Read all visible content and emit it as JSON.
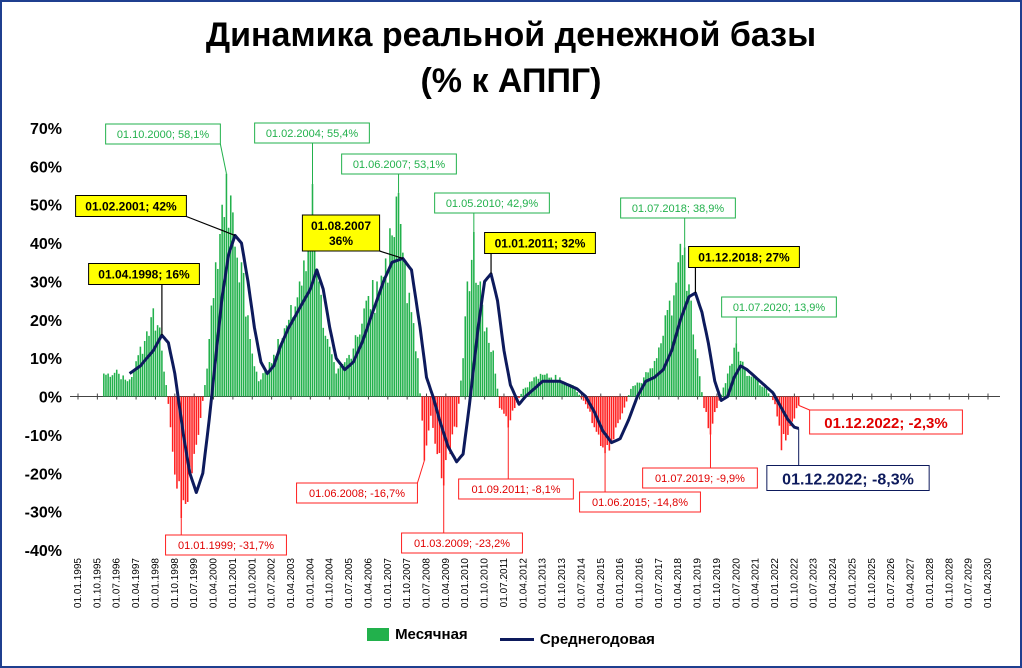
{
  "title_line1": "Динамика реальной денежной базы",
  "title_line2": "(% к АППГ)",
  "legend": {
    "monthly": "Месячная",
    "annual": "Среднегодовая"
  },
  "colors": {
    "positive": "#22b14c",
    "negative": "#ff2020",
    "annual_line": "#0d1a5c",
    "frame": "#1f3f8f"
  },
  "chart_data": {
    "type": "bar",
    "x_unit": "month",
    "x_range": [
      "1995-01",
      "2030-04"
    ],
    "ylim": [
      -40,
      70
    ],
    "yticks": [
      "70%",
      "60%",
      "50%",
      "40%",
      "30%",
      "20%",
      "10%",
      "0%",
      "-10%",
      "-20%",
      "-30%",
      "-40%"
    ],
    "xticks": [
      "01.01.1995",
      "01.10.1995",
      "01.07.1996",
      "01.04.1997",
      "01.01.1998",
      "01.10.1998",
      "01.07.1999",
      "01.04.2000",
      "01.01.2001",
      "01.10.2001",
      "01.07.2002",
      "01.04.2003",
      "01.01.2004",
      "01.10.2004",
      "01.07.2005",
      "01.04.2006",
      "01.01.2007",
      "01.10.2007",
      "01.07.2008",
      "01.04.2009",
      "01.01.2010",
      "01.10.2010",
      "01.07.2011",
      "01.04.2012",
      "01.01.2013",
      "01.10.2013",
      "01.07.2014",
      "01.04.2015",
      "01.01.2016",
      "01.10.2016",
      "01.07.2017",
      "01.04.2018",
      "01.01.2019",
      "01.10.2019",
      "01.07.2020",
      "01.04.2021",
      "01.01.2022",
      "01.10.2022",
      "01.07.2023",
      "01.04.2024",
      "01.01.2025",
      "01.10.2025",
      "01.07.2026",
      "01.04.2027",
      "01.01.2028",
      "01.10.2028",
      "01.07.2029",
      "01.04.2030"
    ],
    "monthly_points": [
      [
        "1996-01",
        6
      ],
      [
        "1996-07",
        7
      ],
      [
        "1996-12",
        4
      ],
      [
        "1997-03",
        7
      ],
      [
        "1997-06",
        13
      ],
      [
        "1997-09",
        17
      ],
      [
        "1997-12",
        23
      ],
      [
        "1998-03",
        18
      ],
      [
        "1998-06",
        3
      ],
      [
        "1998-08",
        -8
      ],
      [
        "1998-11",
        -24
      ],
      [
        "1999-01",
        -31.7
      ],
      [
        "1999-03",
        -28
      ],
      [
        "1999-06",
        -20
      ],
      [
        "1999-09",
        -10
      ],
      [
        "1999-12",
        3
      ],
      [
        "2000-02",
        15
      ],
      [
        "2000-05",
        35
      ],
      [
        "2000-08",
        50
      ],
      [
        "2000-10",
        58.1
      ],
      [
        "2001-01",
        48
      ],
      [
        "2001-05",
        35
      ],
      [
        "2001-09",
        15
      ],
      [
        "2002-01",
        4
      ],
      [
        "2002-06",
        9
      ],
      [
        "2002-10",
        15
      ],
      [
        "2003-03",
        20
      ],
      [
        "2003-08",
        30
      ],
      [
        "2003-12",
        38
      ],
      [
        "2004-02",
        55.4
      ],
      [
        "2004-05",
        30
      ],
      [
        "2004-09",
        15
      ],
      [
        "2005-01",
        6
      ],
      [
        "2005-06",
        10
      ],
      [
        "2005-10",
        16
      ],
      [
        "2006-03",
        25
      ],
      [
        "2006-08",
        30
      ],
      [
        "2006-12",
        36
      ],
      [
        "2007-03",
        42
      ],
      [
        "2007-06",
        53.1
      ],
      [
        "2007-09",
        35
      ],
      [
        "2007-12",
        22
      ],
      [
        "2008-03",
        10
      ],
      [
        "2008-06",
        -16.7
      ],
      [
        "2008-09",
        -5
      ],
      [
        "2008-12",
        -15
      ],
      [
        "2009-03",
        -23.2
      ],
      [
        "2009-06",
        -15
      ],
      [
        "2009-09",
        -8
      ],
      [
        "2009-12",
        10
      ],
      [
        "2010-02",
        30
      ],
      [
        "2010-05",
        42.9
      ],
      [
        "2010-08",
        30
      ],
      [
        "2010-11",
        18
      ],
      [
        "2011-02",
        12
      ],
      [
        "2011-05",
        -3
      ],
      [
        "2011-09",
        -8.1
      ],
      [
        "2011-12",
        -3
      ],
      [
        "2012-04",
        2
      ],
      [
        "2012-09",
        5
      ],
      [
        "2013-03",
        6
      ],
      [
        "2013-09",
        5
      ],
      [
        "2014-03",
        3
      ],
      [
        "2014-09",
        -2
      ],
      [
        "2015-01",
        -8
      ],
      [
        "2015-06",
        -14.8
      ],
      [
        "2015-09",
        -12
      ],
      [
        "2016-01",
        -6
      ],
      [
        "2016-06",
        2
      ],
      [
        "2016-12",
        5
      ],
      [
        "2017-06",
        10
      ],
      [
        "2017-12",
        25
      ],
      [
        "2018-04",
        35
      ],
      [
        "2018-07",
        38.9
      ],
      [
        "2018-10",
        25
      ],
      [
        "2019-01",
        10
      ],
      [
        "2019-04",
        -3
      ],
      [
        "2019-07",
        -9.9
      ],
      [
        "2019-10",
        -3
      ],
      [
        "2020-03",
        6
      ],
      [
        "2020-07",
        13.9
      ],
      [
        "2020-11",
        7
      ],
      [
        "2021-04",
        5
      ],
      [
        "2021-09",
        2
      ],
      [
        "2022-01",
        -2
      ],
      [
        "2022-04",
        -14
      ],
      [
        "2022-07",
        -10
      ],
      [
        "2022-12",
        -2.3
      ]
    ],
    "annual_points": [
      [
        "1997-01",
        6
      ],
      [
        "1997-06",
        8
      ],
      [
        "1997-12",
        12
      ],
      [
        "1998-04",
        16
      ],
      [
        "1998-07",
        14
      ],
      [
        "1998-10",
        6
      ],
      [
        "1999-02",
        -10
      ],
      [
        "1999-05",
        -20
      ],
      [
        "1999-08",
        -25
      ],
      [
        "1999-11",
        -20
      ],
      [
        "2000-02",
        -6
      ],
      [
        "2000-05",
        10
      ],
      [
        "2000-08",
        26
      ],
      [
        "2000-11",
        37
      ],
      [
        "2001-02",
        42
      ],
      [
        "2001-05",
        40
      ],
      [
        "2001-08",
        30
      ],
      [
        "2001-11",
        18
      ],
      [
        "2002-02",
        9
      ],
      [
        "2002-05",
        6
      ],
      [
        "2002-08",
        8
      ],
      [
        "2002-11",
        13
      ],
      [
        "2003-03",
        18
      ],
      [
        "2003-08",
        23
      ],
      [
        "2004-01",
        28
      ],
      [
        "2004-04",
        33
      ],
      [
        "2004-07",
        28
      ],
      [
        "2004-10",
        18
      ],
      [
        "2005-01",
        10
      ],
      [
        "2005-05",
        7
      ],
      [
        "2005-09",
        9
      ],
      [
        "2006-01",
        14
      ],
      [
        "2006-06",
        22
      ],
      [
        "2006-11",
        30
      ],
      [
        "2007-03",
        35
      ],
      [
        "2007-08",
        36
      ],
      [
        "2007-12",
        33
      ],
      [
        "2008-04",
        18
      ],
      [
        "2008-07",
        5
      ],
      [
        "2008-10",
        0
      ],
      [
        "2009-01",
        -6
      ],
      [
        "2009-05",
        -13
      ],
      [
        "2009-09",
        -17
      ],
      [
        "2009-12",
        -15
      ],
      [
        "2010-03",
        -2
      ],
      [
        "2010-07",
        18
      ],
      [
        "2010-10",
        30
      ],
      [
        "2011-01",
        32
      ],
      [
        "2011-04",
        25
      ],
      [
        "2011-07",
        12
      ],
      [
        "2011-10",
        3
      ],
      [
        "2012-02",
        -2
      ],
      [
        "2012-05",
        0
      ],
      [
        "2012-09",
        2
      ],
      [
        "2013-01",
        4
      ],
      [
        "2013-05",
        4
      ],
      [
        "2013-09",
        4
      ],
      [
        "2014-01",
        3
      ],
      [
        "2014-05",
        2
      ],
      [
        "2014-09",
        0
      ],
      [
        "2015-01",
        -4
      ],
      [
        "2015-05",
        -9
      ],
      [
        "2015-09",
        -12
      ],
      [
        "2016-01",
        -11
      ],
      [
        "2016-05",
        -6
      ],
      [
        "2016-09",
        0
      ],
      [
        "2017-01",
        4
      ],
      [
        "2017-05",
        5
      ],
      [
        "2017-09",
        7
      ],
      [
        "2018-01",
        12
      ],
      [
        "2018-05",
        20
      ],
      [
        "2018-09",
        26
      ],
      [
        "2018-12",
        27
      ],
      [
        "2019-03",
        22
      ],
      [
        "2019-06",
        14
      ],
      [
        "2019-09",
        4
      ],
      [
        "2019-12",
        -1
      ],
      [
        "2020-03",
        0
      ],
      [
        "2020-06",
        5
      ],
      [
        "2020-09",
        8
      ],
      [
        "2020-12",
        7
      ],
      [
        "2021-04",
        5
      ],
      [
        "2021-08",
        3
      ],
      [
        "2021-12",
        1
      ],
      [
        "2022-03",
        -2
      ],
      [
        "2022-07",
        -6
      ],
      [
        "2022-10",
        -8
      ],
      [
        "2022-12",
        -8.3
      ]
    ],
    "annotations": [
      {
        "text": "01.10.2000; 58,1%",
        "kind": "monthly-pos",
        "date": "2000-10",
        "value": 58.1,
        "lx": 163,
        "ly": 134
      },
      {
        "text": "01.02.2004; 55,4%",
        "kind": "monthly-pos",
        "date": "2004-02",
        "value": 55.4,
        "lx": 312,
        "ly": 133
      },
      {
        "text": "01.06.2007; 53,1%",
        "kind": "monthly-pos",
        "date": "2007-06",
        "value": 53.1,
        "lx": 399,
        "ly": 164
      },
      {
        "text": "01.05.2010; 42,9%",
        "kind": "monthly-pos",
        "date": "2010-05",
        "value": 42.9,
        "lx": 492,
        "ly": 203
      },
      {
        "text": "01.07.2018; 38,9%",
        "kind": "monthly-pos",
        "date": "2018-07",
        "value": 38.9,
        "lx": 678,
        "ly": 208
      },
      {
        "text": "01.07.2020; 13,9%",
        "kind": "monthly-pos",
        "date": "2020-07",
        "value": 13.9,
        "lx": 779,
        "ly": 307
      },
      {
        "text": "01.02.2001; 42%",
        "kind": "annual",
        "date": "2001-02",
        "value": 42,
        "lx": 131,
        "ly": 206
      },
      {
        "text": "01.08.2007\n36%",
        "kind": "annual",
        "date": "2007-08",
        "value": 36,
        "lx": 341,
        "ly": 233
      },
      {
        "text": "01.01.2011; 32%",
        "kind": "annual",
        "date": "2011-01",
        "value": 32,
        "lx": 540,
        "ly": 243
      },
      {
        "text": "01.04.1998; 16%",
        "kind": "annual",
        "date": "1998-04",
        "value": 16,
        "lx": 144,
        "ly": 274
      },
      {
        "text": "01.12.2018; 27%",
        "kind": "annual",
        "date": "2018-12",
        "value": 27,
        "lx": 744,
        "ly": 257
      },
      {
        "text": "01.06.2008; -16,7%",
        "kind": "monthly-neg",
        "date": "2008-06",
        "value": -16.7,
        "lx": 357,
        "ly": 493
      },
      {
        "text": "01.01.1999; -31,7%",
        "kind": "monthly-neg",
        "date": "1999-01",
        "value": -31.7,
        "lx": 226,
        "ly": 545
      },
      {
        "text": "01.03.2009; -23,2%",
        "kind": "monthly-neg",
        "date": "2009-03",
        "value": -23.2,
        "lx": 462,
        "ly": 543
      },
      {
        "text": "01.09.2011; -8,1%",
        "kind": "monthly-neg",
        "date": "2011-09",
        "value": -8.1,
        "lx": 516,
        "ly": 489
      },
      {
        "text": "01.06.2015; -14,8%",
        "kind": "monthly-neg",
        "date": "2015-06",
        "value": -14.8,
        "lx": 640,
        "ly": 502
      },
      {
        "text": "01.07.2019; -9,9%",
        "kind": "monthly-neg",
        "date": "2019-07",
        "value": -9.9,
        "lx": 700,
        "ly": 478
      },
      {
        "text": "01.12.2022; -2,3%",
        "kind": "monthly-neg-big",
        "date": "2022-12",
        "value": -2.3,
        "lx": 886,
        "ly": 422
      },
      {
        "text": "01.12.2022; -8,3%",
        "kind": "annual-big",
        "date": "2022-12",
        "value": -8.3,
        "lx": 848,
        "ly": 478
      }
    ]
  }
}
